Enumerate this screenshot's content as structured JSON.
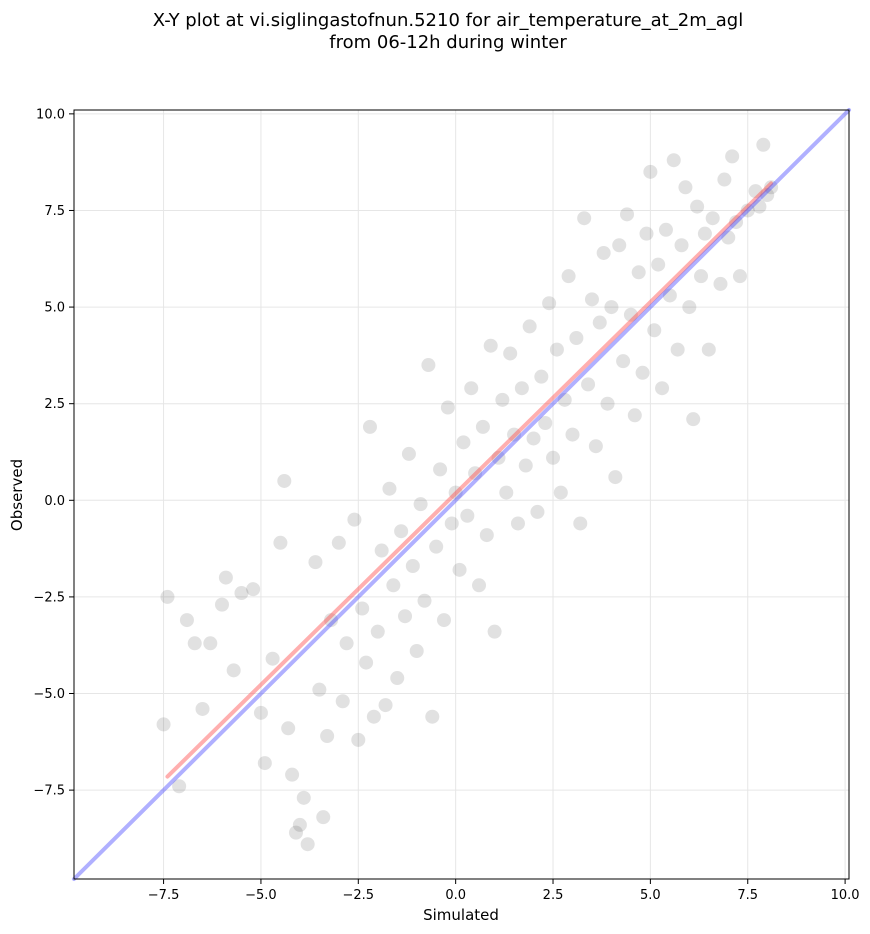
{
  "chart_data": {
    "type": "scatter",
    "title_lines": [
      "X-Y plot at vi.siglingastofnun.5210 for air_temperature_at_2m_agl",
      "from 06-12h during winter"
    ],
    "xlabel": "Simulated",
    "ylabel": "Observed",
    "xlim": [
      -9.8,
      10.1
    ],
    "ylim": [
      -9.8,
      10.1
    ],
    "xticks": [
      -7.5,
      -5.0,
      -2.5,
      0.0,
      2.5,
      5.0,
      7.5,
      10.0
    ],
    "yticks": [
      -7.5,
      -5.0,
      -2.5,
      0.0,
      2.5,
      5.0,
      7.5,
      10.0
    ],
    "xtick_labels": [
      "−7.5",
      "−5.0",
      "−2.5",
      "0.0",
      "2.5",
      "5.0",
      "7.5",
      "10.0"
    ],
    "ytick_labels": [
      "−7.5",
      "−5.0",
      "−2.5",
      "0.0",
      "2.5",
      "5.0",
      "7.5",
      "10.0"
    ],
    "grid": true,
    "point_color": "#444444",
    "points_sample": [
      [
        -7.4,
        -2.5
      ],
      [
        -7.5,
        -5.8
      ],
      [
        -7.1,
        -7.4
      ],
      [
        -6.9,
        -3.1
      ],
      [
        -6.7,
        -3.7
      ],
      [
        -6.5,
        -5.4
      ],
      [
        -6.3,
        -3.7
      ],
      [
        -6.0,
        -2.7
      ],
      [
        -5.9,
        -2.0
      ],
      [
        -5.7,
        -4.4
      ],
      [
        -5.5,
        -2.4
      ],
      [
        -5.2,
        -2.3
      ],
      [
        -5.0,
        -5.5
      ],
      [
        -4.9,
        -6.8
      ],
      [
        -4.7,
        -4.1
      ],
      [
        -4.5,
        -1.1
      ],
      [
        -4.4,
        0.5
      ],
      [
        -4.3,
        -5.9
      ],
      [
        -4.2,
        -7.1
      ],
      [
        -4.1,
        -8.6
      ],
      [
        -4.0,
        -8.4
      ],
      [
        -3.9,
        -7.7
      ],
      [
        -3.8,
        -8.9
      ],
      [
        -3.6,
        -1.6
      ],
      [
        -3.5,
        -4.9
      ],
      [
        -3.4,
        -8.2
      ],
      [
        -3.3,
        -6.1
      ],
      [
        -3.2,
        -3.1
      ],
      [
        -3.0,
        -1.1
      ],
      [
        -2.9,
        -5.2
      ],
      [
        -2.8,
        -3.7
      ],
      [
        -2.6,
        -0.5
      ],
      [
        -2.5,
        -6.2
      ],
      [
        -2.4,
        -2.8
      ],
      [
        -2.3,
        -4.2
      ],
      [
        -2.2,
        1.9
      ],
      [
        -2.1,
        -5.6
      ],
      [
        -2.0,
        -3.4
      ],
      [
        -1.9,
        -1.3
      ],
      [
        -1.8,
        -5.3
      ],
      [
        -1.7,
        0.3
      ],
      [
        -1.6,
        -2.2
      ],
      [
        -1.5,
        -4.6
      ],
      [
        -1.4,
        -0.8
      ],
      [
        -1.3,
        -3.0
      ],
      [
        -1.2,
        1.2
      ],
      [
        -1.1,
        -1.7
      ],
      [
        -1.0,
        -3.9
      ],
      [
        -0.9,
        -0.1
      ],
      [
        -0.8,
        -2.6
      ],
      [
        -0.7,
        3.5
      ],
      [
        -0.6,
        -5.6
      ],
      [
        -0.5,
        -1.2
      ],
      [
        -0.4,
        0.8
      ],
      [
        -0.3,
        -3.1
      ],
      [
        -0.2,
        2.4
      ],
      [
        -0.1,
        -0.6
      ],
      [
        0.0,
        0.2
      ],
      [
        0.1,
        -1.8
      ],
      [
        0.2,
        1.5
      ],
      [
        0.3,
        -0.4
      ],
      [
        0.4,
        2.9
      ],
      [
        0.5,
        0.7
      ],
      [
        0.6,
        -2.2
      ],
      [
        0.7,
        1.9
      ],
      [
        0.8,
        -0.9
      ],
      [
        0.9,
        4.0
      ],
      [
        1.0,
        -3.4
      ],
      [
        1.1,
        1.1
      ],
      [
        1.2,
        2.6
      ],
      [
        1.3,
        0.2
      ],
      [
        1.4,
        3.8
      ],
      [
        1.5,
        1.7
      ],
      [
        1.6,
        -0.6
      ],
      [
        1.7,
        2.9
      ],
      [
        1.8,
        0.9
      ],
      [
        1.9,
        4.5
      ],
      [
        2.0,
        1.6
      ],
      [
        2.1,
        -0.3
      ],
      [
        2.2,
        3.2
      ],
      [
        2.3,
        2.0
      ],
      [
        2.4,
        5.1
      ],
      [
        2.5,
        1.1
      ],
      [
        2.6,
        3.9
      ],
      [
        2.7,
        0.2
      ],
      [
        2.8,
        2.6
      ],
      [
        2.9,
        5.8
      ],
      [
        3.0,
        1.7
      ],
      [
        3.1,
        4.2
      ],
      [
        3.2,
        -0.6
      ],
      [
        3.3,
        7.3
      ],
      [
        3.4,
        3.0
      ],
      [
        3.5,
        5.2
      ],
      [
        3.6,
        1.4
      ],
      [
        3.7,
        4.6
      ],
      [
        3.8,
        6.4
      ],
      [
        3.9,
        2.5
      ],
      [
        4.0,
        5.0
      ],
      [
        4.1,
        0.6
      ],
      [
        4.2,
        6.6
      ],
      [
        4.3,
        3.6
      ],
      [
        4.4,
        7.4
      ],
      [
        4.5,
        4.8
      ],
      [
        4.6,
        2.2
      ],
      [
        4.7,
        5.9
      ],
      [
        4.8,
        3.3
      ],
      [
        4.9,
        6.9
      ],
      [
        5.0,
        8.5
      ],
      [
        5.1,
        4.4
      ],
      [
        5.2,
        6.1
      ],
      [
        5.3,
        2.9
      ],
      [
        5.4,
        7.0
      ],
      [
        5.5,
        5.3
      ],
      [
        5.6,
        8.8
      ],
      [
        5.7,
        3.9
      ],
      [
        5.8,
        6.6
      ],
      [
        5.9,
        8.1
      ],
      [
        6.0,
        5.0
      ],
      [
        6.1,
        2.1
      ],
      [
        6.2,
        7.6
      ],
      [
        6.3,
        5.8
      ],
      [
        6.4,
        6.9
      ],
      [
        6.5,
        3.9
      ],
      [
        6.6,
        7.3
      ],
      [
        6.8,
        5.6
      ],
      [
        6.9,
        8.3
      ],
      [
        7.0,
        6.8
      ],
      [
        7.1,
        8.9
      ],
      [
        7.2,
        7.2
      ],
      [
        7.3,
        5.8
      ],
      [
        7.5,
        7.5
      ],
      [
        7.7,
        8.0
      ],
      [
        7.8,
        7.6
      ],
      [
        7.9,
        9.2
      ],
      [
        8.0,
        7.9
      ],
      [
        8.1,
        8.1
      ]
    ],
    "lines": [
      {
        "color": "#ff4d4d",
        "opacity": 0.45,
        "x": [
          -7.4,
          8.1
        ],
        "y": [
          -7.15,
          8.2
        ]
      },
      {
        "color": "#3a3aff",
        "opacity": 0.4,
        "x": [
          -9.8,
          10.1
        ],
        "y": [
          -9.8,
          10.1
        ]
      }
    ]
  }
}
